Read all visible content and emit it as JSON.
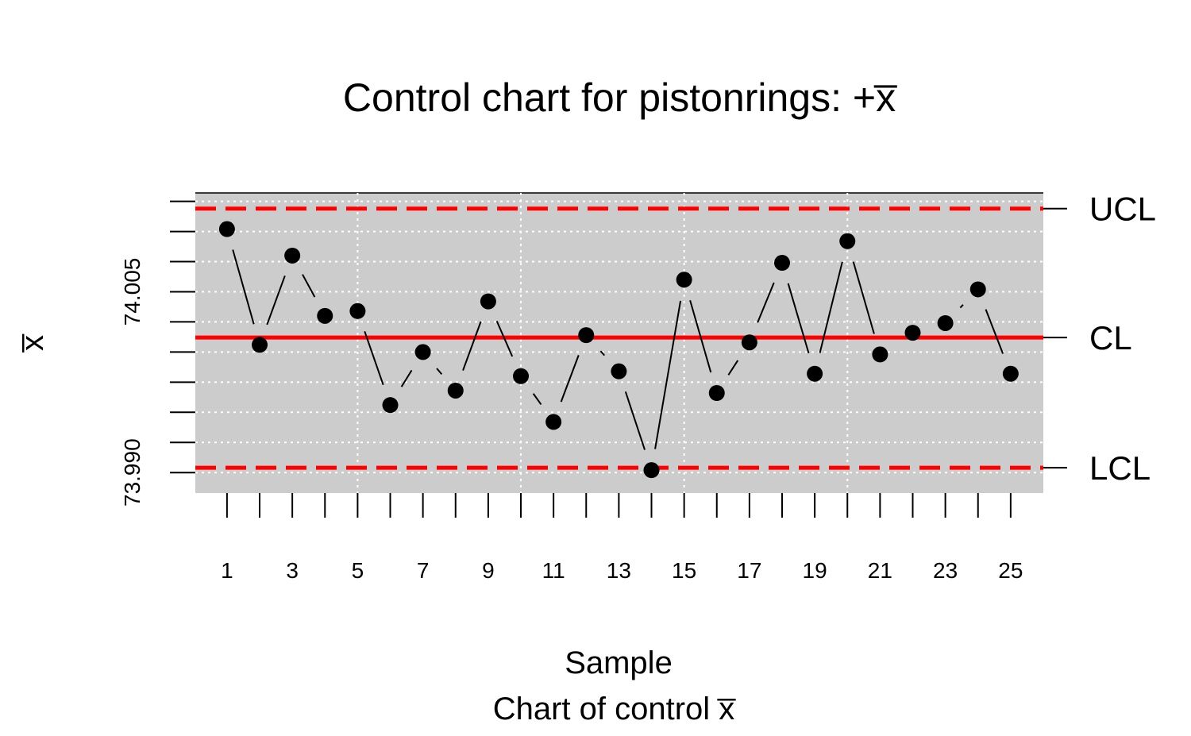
{
  "chart_data": {
    "type": "line",
    "title": "Control chart for pistonrings: +x̅",
    "xlabel": "Sample",
    "subtitle": "Chart of control x̅",
    "ylabel": "x̅",
    "x": [
      1,
      2,
      3,
      4,
      5,
      6,
      7,
      8,
      9,
      10,
      11,
      12,
      13,
      14,
      15,
      16,
      17,
      18,
      19,
      20,
      21,
      22,
      23,
      24,
      25
    ],
    "values": [
      74.0102,
      74.0006,
      74.008,
      74.003,
      74.0034,
      73.9956,
      74.0,
      73.9968,
      74.0042,
      73.998,
      73.9942,
      74.0014,
      73.9984,
      73.9902,
      74.006,
      73.9966,
      74.0008,
      74.0074,
      73.9982,
      74.0092,
      73.9998,
      74.0016,
      74.0024,
      74.0052,
      73.9982
    ],
    "x_tick_labels": [
      "1",
      "3",
      "5",
      "7",
      "9",
      "11",
      "13",
      "15",
      "17",
      "19",
      "21",
      "23",
      "25"
    ],
    "y_tick_labels": [
      "74.005",
      "73.990"
    ],
    "y_ticks": [
      74.0125,
      74.01,
      74.0075,
      74.005,
      74.0025,
      74.0,
      73.9975,
      73.995,
      73.9925,
      73.99
    ],
    "ylim": [
      73.9883,
      74.0132
    ],
    "xlim": [
      0.03,
      26.0
    ],
    "grid": true,
    "center_line": {
      "value": 74.0012,
      "label": "CL",
      "color": "#ff0000"
    },
    "ucl": {
      "value": 74.0119,
      "label": "UCL",
      "color": "#ff0000"
    },
    "lcl": {
      "value": 73.9904,
      "label": "LCL",
      "color": "#ff0000"
    },
    "panel_color": "#cccccc",
    "point_color": "#000000",
    "line_color": "#000000",
    "grid_color": "#ffffff"
  }
}
